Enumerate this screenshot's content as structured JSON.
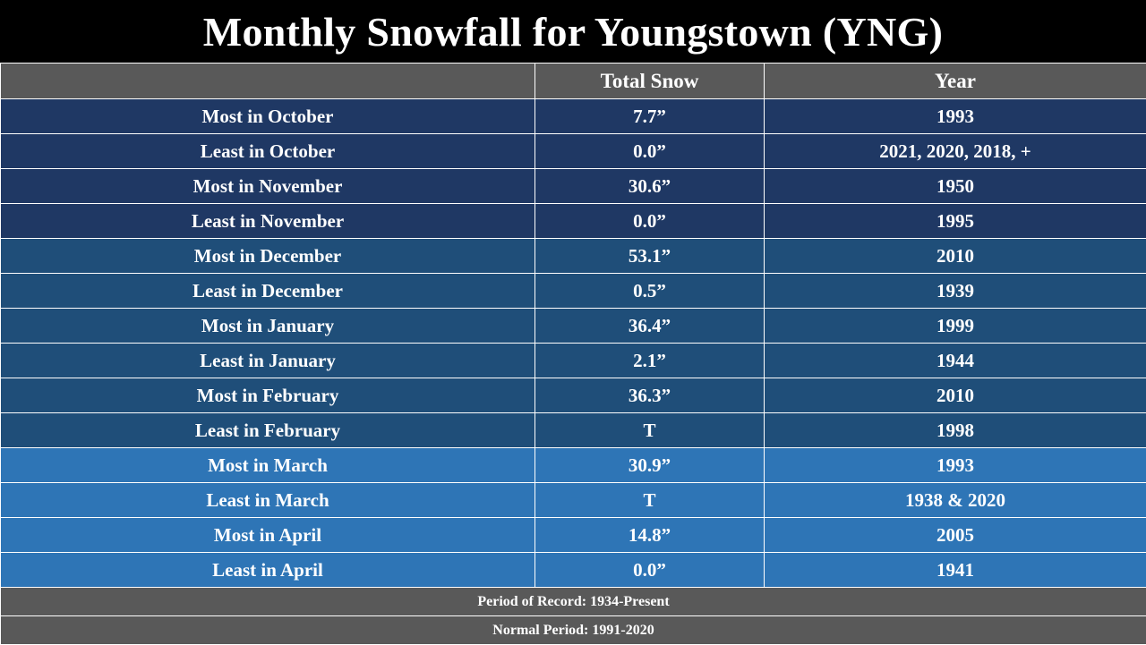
{
  "title": "Monthly Snowfall for Youngstown (YNG)",
  "colors": {
    "header_bg": "#595959",
    "group_oct_nov": "#1f3864",
    "group_dec_feb": "#1f4e79",
    "group_mar_apr": "#2e75b6",
    "footer_bg": "#595959"
  },
  "table": {
    "headers": [
      "",
      "Total Snow",
      "Year"
    ],
    "rows": [
      {
        "label": "Most in October",
        "snow": "7.7”",
        "year": "1993"
      },
      {
        "label": "Least in October",
        "snow": "0.0”",
        "year": "2021, 2020, 2018, +"
      },
      {
        "label": "Most in November",
        "snow": "30.6”",
        "year": "1950"
      },
      {
        "label": "Least in November",
        "snow": "0.0”",
        "year": "1995"
      },
      {
        "label": "Most in December",
        "snow": "53.1”",
        "year": "2010"
      },
      {
        "label": "Least in December",
        "snow": "0.5”",
        "year": "1939"
      },
      {
        "label": "Most in January",
        "snow": "36.4”",
        "year": "1999"
      },
      {
        "label": "Least in January",
        "snow": "2.1”",
        "year": "1944"
      },
      {
        "label": "Most in February",
        "snow": "36.3”",
        "year": "2010"
      },
      {
        "label": "Least in February",
        "snow": "T",
        "year": "1998"
      },
      {
        "label": "Most in March",
        "snow": "30.9”",
        "year": "1993"
      },
      {
        "label": "Least in March",
        "snow": "T",
        "year": "1938 & 2020"
      },
      {
        "label": "Most in April",
        "snow": "14.8”",
        "year": "2005"
      },
      {
        "label": "Least in April",
        "snow": "0.0”",
        "year": "1941"
      }
    ]
  },
  "footer": {
    "period_of_record": "Period of Record: 1934-Present",
    "normal_period": "Normal Period: 1991-2020"
  }
}
